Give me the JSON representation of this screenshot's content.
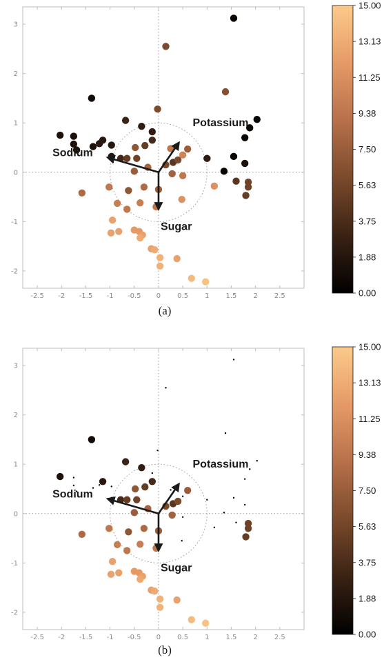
{
  "chart_data": [
    {
      "type": "scatter",
      "caption": "(a)",
      "xlim": [
        -2.8,
        3.0
      ],
      "ylim": [
        -2.35,
        3.35
      ],
      "xticks": [
        "-2.5",
        "-2",
        "-1.5",
        "-1",
        "-0.5",
        "0",
        "0.5",
        "1",
        "1.5",
        "2",
        "2.5"
      ],
      "yticks": [
        "-2",
        "-1",
        "0",
        "1",
        "2",
        "3"
      ],
      "grid": false,
      "reference_lines": {
        "x": 0,
        "y": 0,
        "circle_radius": 1
      },
      "colorbar": {
        "range": [
          0,
          15
        ],
        "ticks": [
          "15.00",
          "13.13",
          "11.25",
          "9.38",
          "7.50",
          "5.63",
          "3.75",
          "1.88",
          "0.00"
        ],
        "colormap": [
          "#000000",
          "#3a2214",
          "#7a4a2c",
          "#b7704a",
          "#e59a66",
          "#fcca8a"
        ]
      },
      "vectors": [
        {
          "label": "Potassium",
          "dx": 0.42,
          "dy": 0.6
        },
        {
          "label": "Sodium",
          "dx": -1.05,
          "dy": 0.3
        },
        {
          "label": "Sugar",
          "dx": 0.0,
          "dy": -0.75
        }
      ],
      "points": [
        {
          "x": 1.55,
          "y": 3.12,
          "c": 0.5,
          "s": 1
        },
        {
          "x": 0.15,
          "y": 2.55,
          "c": 6.0,
          "s": 1
        },
        {
          "x": -1.38,
          "y": 1.5,
          "c": 1.0,
          "s": 1
        },
        {
          "x": 1.38,
          "y": 1.63,
          "c": 6.5,
          "s": 1
        },
        {
          "x": -0.02,
          "y": 1.28,
          "c": 6.0,
          "s": 1
        },
        {
          "x": -0.68,
          "y": 1.05,
          "c": 3.0,
          "s": 1
        },
        {
          "x": -0.35,
          "y": 0.93,
          "c": 2.5,
          "s": 1
        },
        {
          "x": -0.13,
          "y": 0.82,
          "c": 2.5,
          "s": 1
        },
        {
          "x": -0.13,
          "y": 0.65,
          "c": 3.5,
          "s": 1
        },
        {
          "x": -2.03,
          "y": 0.75,
          "c": 1.5,
          "s": 1
        },
        {
          "x": -1.75,
          "y": 0.73,
          "c": 1.5,
          "s": 1
        },
        {
          "x": -1.75,
          "y": 0.57,
          "c": 1.5,
          "s": 1
        },
        {
          "x": -1.69,
          "y": 0.45,
          "c": 1.5,
          "s": 1
        },
        {
          "x": -1.35,
          "y": 0.52,
          "c": 1.5,
          "s": 1
        },
        {
          "x": -1.22,
          "y": 0.58,
          "c": 2.0,
          "s": 1
        },
        {
          "x": -1.15,
          "y": 0.65,
          "c": 2.0,
          "s": 1
        },
        {
          "x": -0.97,
          "y": 0.55,
          "c": 2.0,
          "s": 1
        },
        {
          "x": -0.97,
          "y": 0.32,
          "c": 2.0,
          "s": 1
        },
        {
          "x": 2.03,
          "y": 1.07,
          "c": 0.5,
          "s": 1
        },
        {
          "x": 1.88,
          "y": 0.9,
          "c": 0.5,
          "s": 1
        },
        {
          "x": 1.78,
          "y": 0.7,
          "c": 0.5,
          "s": 1
        },
        {
          "x": 1.55,
          "y": 0.32,
          "c": 0.5,
          "s": 1
        },
        {
          "x": 1.78,
          "y": 0.18,
          "c": 1.5,
          "s": 1
        },
        {
          "x": 1.35,
          "y": 0.02,
          "c": 0.5,
          "s": 1
        },
        {
          "x": 1.0,
          "y": 0.28,
          "c": 2.5,
          "s": 1
        },
        {
          "x": 1.85,
          "y": -0.2,
          "c": 5.5,
          "s": 1
        },
        {
          "x": 1.85,
          "y": -0.3,
          "c": 5.5,
          "s": 1
        },
        {
          "x": 1.6,
          "y": -0.18,
          "c": 4.5,
          "s": 1
        },
        {
          "x": 1.8,
          "y": -0.47,
          "c": 5.0,
          "s": 1
        },
        {
          "x": -0.48,
          "y": 0.5,
          "c": 7.0,
          "s": 1
        },
        {
          "x": -0.28,
          "y": 0.54,
          "c": 5.0,
          "s": 1
        },
        {
          "x": 0.6,
          "y": 0.47,
          "c": 7.5,
          "s": 1
        },
        {
          "x": 0.25,
          "y": 0.48,
          "c": 9.5,
          "s": 1
        },
        {
          "x": -0.78,
          "y": 0.28,
          "c": 3.5,
          "s": 1
        },
        {
          "x": -0.65,
          "y": 0.28,
          "c": 5.0,
          "s": 1
        },
        {
          "x": -0.45,
          "y": 0.28,
          "c": 5.5,
          "s": 1
        },
        {
          "x": 0.3,
          "y": 0.2,
          "c": 4.5,
          "s": 1
        },
        {
          "x": 0.4,
          "y": 0.25,
          "c": 6.0,
          "s": 1
        },
        {
          "x": 0.5,
          "y": 0.35,
          "c": 10.5,
          "s": 1
        },
        {
          "x": 0.15,
          "y": 0.15,
          "c": 6.0,
          "s": 1
        },
        {
          "x": -0.22,
          "y": 0.1,
          "c": 8.0,
          "s": 1
        },
        {
          "x": -0.5,
          "y": 0.02,
          "c": 7.5,
          "s": 1
        },
        {
          "x": 0.28,
          "y": -0.03,
          "c": 8.0,
          "s": 1
        },
        {
          "x": 0.5,
          "y": -0.07,
          "c": 9.5,
          "s": 1
        },
        {
          "x": -1.02,
          "y": -0.3,
          "c": 9.5,
          "s": 1
        },
        {
          "x": -0.62,
          "y": -0.37,
          "c": 7.0,
          "s": 1
        },
        {
          "x": -0.3,
          "y": -0.3,
          "c": 8.5,
          "s": 1
        },
        {
          "x": 0.0,
          "y": -0.35,
          "c": 7.5,
          "s": 1
        },
        {
          "x": -1.58,
          "y": -0.42,
          "c": 8.5,
          "s": 1
        },
        {
          "x": 1.15,
          "y": -0.28,
          "c": 11.5,
          "s": 1
        },
        {
          "x": -0.85,
          "y": -0.63,
          "c": 10.0,
          "s": 1
        },
        {
          "x": -0.65,
          "y": -0.75,
          "c": 9.5,
          "s": 1
        },
        {
          "x": -0.38,
          "y": -0.62,
          "c": 10.0,
          "s": 1
        },
        {
          "x": -0.05,
          "y": -0.7,
          "c": 9.5,
          "s": 1
        },
        {
          "x": 0.48,
          "y": -0.55,
          "c": 11.5,
          "s": 1
        },
        {
          "x": -0.95,
          "y": -0.97,
          "c": 12.5,
          "s": 1
        },
        {
          "x": -0.82,
          "y": -1.2,
          "c": 12.5,
          "s": 1
        },
        {
          "x": -0.98,
          "y": -1.23,
          "c": 12.5,
          "s": 1
        },
        {
          "x": -0.5,
          "y": -1.17,
          "c": 12.0,
          "s": 1
        },
        {
          "x": -0.4,
          "y": -1.2,
          "c": 12.0,
          "s": 1
        },
        {
          "x": -0.33,
          "y": -1.27,
          "c": 12.5,
          "s": 1
        },
        {
          "x": -0.38,
          "y": -1.33,
          "c": 13.0,
          "s": 1
        },
        {
          "x": -0.15,
          "y": -1.55,
          "c": 12.5,
          "s": 1
        },
        {
          "x": -0.08,
          "y": -1.57,
          "c": 13.0,
          "s": 1
        },
        {
          "x": 0.03,
          "y": -1.73,
          "c": 13.5,
          "s": 1
        },
        {
          "x": 0.38,
          "y": -1.75,
          "c": 12.5,
          "s": 1
        },
        {
          "x": 0.03,
          "y": -1.9,
          "c": 13.5,
          "s": 1
        },
        {
          "x": 0.68,
          "y": -2.15,
          "c": 14.0,
          "s": 1
        },
        {
          "x": 0.97,
          "y": -2.22,
          "c": 14.5,
          "s": 1
        }
      ]
    },
    {
      "type": "scatter",
      "caption": "(b)",
      "xlim": [
        -2.8,
        3.0
      ],
      "ylim": [
        -2.35,
        3.35
      ],
      "xticks": [
        "-2.5",
        "-2",
        "-1.5",
        "-1",
        "-0.5",
        "0",
        "0.5",
        "1",
        "1.5",
        "2",
        "2.5"
      ],
      "yticks": [
        "-2",
        "-1",
        "0",
        "1",
        "2",
        "3"
      ],
      "grid": false,
      "reference_lines": {
        "x": 0,
        "y": 0,
        "circle_radius": 1
      },
      "colorbar": {
        "range": [
          0,
          15
        ],
        "ticks": [
          "15.00",
          "13.13",
          "11.25",
          "9.38",
          "7.50",
          "5.63",
          "3.75",
          "1.88",
          "0.00"
        ],
        "colormap": [
          "#000000",
          "#3a2214",
          "#7a4a2c",
          "#b7704a",
          "#e59a66",
          "#fcca8a"
        ]
      },
      "vectors": [
        {
          "label": "Potassium",
          "dx": 0.42,
          "dy": 0.6
        },
        {
          "label": "Sodium",
          "dx": -1.05,
          "dy": 0.3
        },
        {
          "label": "Sugar",
          "dx": 0.0,
          "dy": -0.75
        }
      ],
      "points": [
        {
          "x": 1.55,
          "y": 3.12,
          "c": 0.5,
          "s": 0
        },
        {
          "x": 0.15,
          "y": 2.55,
          "c": 0.5,
          "s": 0
        },
        {
          "x": -1.38,
          "y": 1.5,
          "c": 1.0,
          "s": 1
        },
        {
          "x": 1.38,
          "y": 1.63,
          "c": 0.5,
          "s": 0
        },
        {
          "x": -0.02,
          "y": 1.28,
          "c": 0.5,
          "s": 0
        },
        {
          "x": -0.68,
          "y": 1.05,
          "c": 3.0,
          "s": 1
        },
        {
          "x": -0.35,
          "y": 0.93,
          "c": 2.5,
          "s": 1
        },
        {
          "x": -0.13,
          "y": 0.82,
          "c": 0.5,
          "s": 0
        },
        {
          "x": -0.13,
          "y": 0.65,
          "c": 3.5,
          "s": 1
        },
        {
          "x": -2.03,
          "y": 0.75,
          "c": 1.5,
          "s": 1
        },
        {
          "x": -1.75,
          "y": 0.73,
          "c": 0.5,
          "s": 0
        },
        {
          "x": -1.75,
          "y": 0.57,
          "c": 0.5,
          "s": 0
        },
        {
          "x": -1.69,
          "y": 0.45,
          "c": 0.5,
          "s": 0
        },
        {
          "x": -1.35,
          "y": 0.52,
          "c": 0.5,
          "s": 0
        },
        {
          "x": -1.22,
          "y": 0.58,
          "c": 0.5,
          "s": 0
        },
        {
          "x": -1.15,
          "y": 0.65,
          "c": 2.0,
          "s": 1
        },
        {
          "x": -0.97,
          "y": 0.55,
          "c": 0.5,
          "s": 0
        },
        {
          "x": -0.97,
          "y": 0.32,
          "c": 0.5,
          "s": 0
        },
        {
          "x": 2.03,
          "y": 1.07,
          "c": 0.5,
          "s": 0
        },
        {
          "x": 1.88,
          "y": 0.9,
          "c": 0.5,
          "s": 0
        },
        {
          "x": 1.78,
          "y": 0.7,
          "c": 0.5,
          "s": 0
        },
        {
          "x": 1.55,
          "y": 0.32,
          "c": 0.5,
          "s": 0
        },
        {
          "x": 1.78,
          "y": 0.18,
          "c": 0.5,
          "s": 0
        },
        {
          "x": 1.35,
          "y": 0.02,
          "c": 0.5,
          "s": 0
        },
        {
          "x": 1.0,
          "y": 0.28,
          "c": 0.5,
          "s": 0
        },
        {
          "x": 1.85,
          "y": -0.2,
          "c": 5.5,
          "s": 1
        },
        {
          "x": 1.85,
          "y": -0.3,
          "c": 5.5,
          "s": 1
        },
        {
          "x": 1.6,
          "y": -0.18,
          "c": 0.5,
          "s": 0
        },
        {
          "x": 1.8,
          "y": -0.47,
          "c": 5.0,
          "s": 1
        },
        {
          "x": -0.48,
          "y": 0.5,
          "c": 7.0,
          "s": 1
        },
        {
          "x": -0.28,
          "y": 0.54,
          "c": 5.0,
          "s": 1
        },
        {
          "x": 0.6,
          "y": 0.47,
          "c": 7.5,
          "s": 1
        },
        {
          "x": 0.25,
          "y": 0.48,
          "c": 0.5,
          "s": 0
        },
        {
          "x": -0.78,
          "y": 0.28,
          "c": 3.5,
          "s": 1
        },
        {
          "x": -0.65,
          "y": 0.28,
          "c": 5.0,
          "s": 1
        },
        {
          "x": -0.45,
          "y": 0.28,
          "c": 5.5,
          "s": 1
        },
        {
          "x": 0.3,
          "y": 0.2,
          "c": 4.5,
          "s": 1
        },
        {
          "x": 0.4,
          "y": 0.25,
          "c": 6.0,
          "s": 1
        },
        {
          "x": 0.5,
          "y": 0.35,
          "c": 0.5,
          "s": 0
        },
        {
          "x": 0.15,
          "y": 0.15,
          "c": 6.0,
          "s": 1
        },
        {
          "x": -0.22,
          "y": 0.1,
          "c": 8.0,
          "s": 1
        },
        {
          "x": -0.5,
          "y": 0.02,
          "c": 7.5,
          "s": 1
        },
        {
          "x": 0.28,
          "y": -0.03,
          "c": 8.0,
          "s": 1
        },
        {
          "x": 0.5,
          "y": -0.07,
          "c": 0.5,
          "s": 0
        },
        {
          "x": -1.02,
          "y": -0.3,
          "c": 9.5,
          "s": 1
        },
        {
          "x": -0.62,
          "y": -0.37,
          "c": 7.0,
          "s": 1
        },
        {
          "x": -0.3,
          "y": -0.3,
          "c": 8.5,
          "s": 1
        },
        {
          "x": 0.0,
          "y": -0.35,
          "c": 7.5,
          "s": 1
        },
        {
          "x": -1.58,
          "y": -0.42,
          "c": 8.5,
          "s": 1
        },
        {
          "x": 1.15,
          "y": -0.28,
          "c": 0.5,
          "s": 0
        },
        {
          "x": -0.85,
          "y": -0.63,
          "c": 10.0,
          "s": 1
        },
        {
          "x": -0.65,
          "y": -0.75,
          "c": 9.5,
          "s": 1
        },
        {
          "x": -0.38,
          "y": -0.62,
          "c": 10.0,
          "s": 1
        },
        {
          "x": -0.05,
          "y": -0.7,
          "c": 9.5,
          "s": 1
        },
        {
          "x": 0.48,
          "y": -0.55,
          "c": 0.5,
          "s": 0
        },
        {
          "x": -0.95,
          "y": -0.97,
          "c": 12.5,
          "s": 1
        },
        {
          "x": -0.82,
          "y": -1.2,
          "c": 12.5,
          "s": 1
        },
        {
          "x": -0.98,
          "y": -1.23,
          "c": 12.5,
          "s": 1
        },
        {
          "x": -0.5,
          "y": -1.17,
          "c": 12.0,
          "s": 1
        },
        {
          "x": -0.4,
          "y": -1.2,
          "c": 12.0,
          "s": 1
        },
        {
          "x": -0.33,
          "y": -1.27,
          "c": 12.5,
          "s": 1
        },
        {
          "x": -0.38,
          "y": -1.33,
          "c": 13.0,
          "s": 1
        },
        {
          "x": -0.15,
          "y": -1.55,
          "c": 12.5,
          "s": 1
        },
        {
          "x": -0.08,
          "y": -1.57,
          "c": 13.0,
          "s": 1
        },
        {
          "x": 0.03,
          "y": -1.73,
          "c": 13.5,
          "s": 1
        },
        {
          "x": 0.38,
          "y": -1.75,
          "c": 12.5,
          "s": 1
        },
        {
          "x": 0.03,
          "y": -1.9,
          "c": 13.5,
          "s": 1
        },
        {
          "x": 0.68,
          "y": -2.15,
          "c": 14.0,
          "s": 1
        },
        {
          "x": 0.97,
          "y": -2.22,
          "c": 14.5,
          "s": 1
        }
      ]
    }
  ]
}
